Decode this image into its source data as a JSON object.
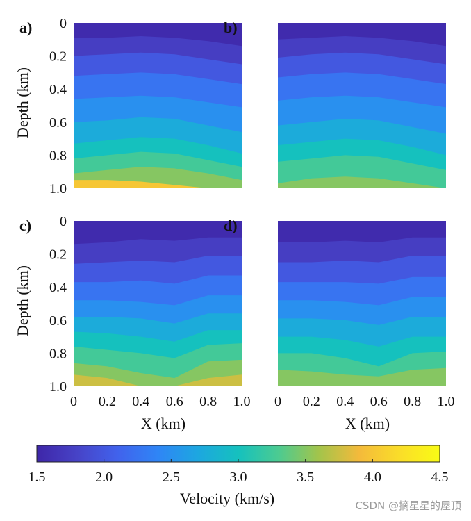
{
  "chart_data": {
    "type": "heatmap",
    "panels": [
      {
        "label": "a)",
        "ylabel": "Depth (km)",
        "xlabel": "",
        "show_yticks": true,
        "show_xticks": false,
        "boundaries": [
          {
            "v": 1.75,
            "d": [
              0.09,
              0.09,
              0.08,
              0.09,
              0.11,
              0.14
            ]
          },
          {
            "v": 2.0,
            "d": [
              0.2,
              0.19,
              0.18,
              0.19,
              0.22,
              0.25
            ]
          },
          {
            "v": 2.25,
            "d": [
              0.32,
              0.31,
              0.3,
              0.31,
              0.34,
              0.37
            ]
          },
          {
            "v": 2.5,
            "d": [
              0.46,
              0.45,
              0.44,
              0.45,
              0.48,
              0.51
            ]
          },
          {
            "v": 2.75,
            "d": [
              0.6,
              0.59,
              0.57,
              0.58,
              0.62,
              0.66
            ]
          },
          {
            "v": 3.0,
            "d": [
              0.73,
              0.71,
              0.69,
              0.7,
              0.74,
              0.79
            ]
          },
          {
            "v": 3.25,
            "d": [
              0.82,
              0.8,
              0.78,
              0.79,
              0.83,
              0.87
            ]
          },
          {
            "v": 3.5,
            "d": [
              0.91,
              0.89,
              0.87,
              0.88,
              0.91,
              0.95
            ]
          },
          {
            "v": 4.0,
            "d": [
              0.95,
              0.95,
              0.96,
              0.98,
              1.0,
              1.0
            ]
          }
        ],
        "bottom_v": 4.0
      },
      {
        "label": "b)",
        "ylabel": "",
        "xlabel": "",
        "show_yticks": false,
        "show_xticks": false,
        "boundaries": [
          {
            "v": 1.75,
            "d": [
              0.1,
              0.09,
              0.08,
              0.09,
              0.11,
              0.14
            ]
          },
          {
            "v": 2.0,
            "d": [
              0.21,
              0.19,
              0.18,
              0.19,
              0.22,
              0.25
            ]
          },
          {
            "v": 2.25,
            "d": [
              0.33,
              0.31,
              0.3,
              0.31,
              0.34,
              0.37
            ]
          },
          {
            "v": 2.5,
            "d": [
              0.47,
              0.45,
              0.44,
              0.45,
              0.48,
              0.51
            ]
          },
          {
            "v": 2.75,
            "d": [
              0.62,
              0.6,
              0.58,
              0.59,
              0.63,
              0.67
            ]
          },
          {
            "v": 3.0,
            "d": [
              0.74,
              0.72,
              0.7,
              0.71,
              0.75,
              0.8
            ]
          },
          {
            "v": 3.25,
            "d": [
              0.84,
              0.82,
              0.8,
              0.81,
              0.85,
              0.89
            ]
          },
          {
            "v": 3.5,
            "d": [
              0.97,
              0.94,
              0.93,
              0.94,
              0.97,
              1.0
            ]
          }
        ],
        "bottom_v": 3.8
      },
      {
        "label": "c)",
        "ylabel": "Depth (km)",
        "xlabel": "X (km)",
        "show_yticks": true,
        "show_xticks": true,
        "boundaries": [
          {
            "v": 1.75,
            "d": [
              0.14,
              0.13,
              0.11,
              0.12,
              0.1,
              0.1
            ]
          },
          {
            "v": 2.0,
            "d": [
              0.26,
              0.25,
              0.24,
              0.25,
              0.21,
              0.21
            ]
          },
          {
            "v": 2.25,
            "d": [
              0.37,
              0.37,
              0.36,
              0.38,
              0.33,
              0.33
            ]
          },
          {
            "v": 2.5,
            "d": [
              0.48,
              0.48,
              0.49,
              0.51,
              0.45,
              0.45
            ]
          },
          {
            "v": 2.75,
            "d": [
              0.58,
              0.58,
              0.59,
              0.62,
              0.56,
              0.56
            ]
          },
          {
            "v": 3.0,
            "d": [
              0.67,
              0.68,
              0.7,
              0.73,
              0.66,
              0.66
            ]
          },
          {
            "v": 3.25,
            "d": [
              0.76,
              0.78,
              0.8,
              0.83,
              0.75,
              0.74
            ]
          },
          {
            "v": 3.5,
            "d": [
              0.86,
              0.88,
              0.92,
              0.95,
              0.85,
              0.84
            ]
          },
          {
            "v": 3.75,
            "d": [
              0.93,
              0.95,
              1.0,
              1.0,
              0.95,
              0.93
            ]
          }
        ],
        "bottom_v": 4.0
      },
      {
        "label": "d)",
        "ylabel": "",
        "xlabel": "X (km)",
        "show_yticks": false,
        "show_xticks": true,
        "boundaries": [
          {
            "v": 1.75,
            "d": [
              0.13,
              0.13,
              0.12,
              0.13,
              0.1,
              0.1
            ]
          },
          {
            "v": 2.0,
            "d": [
              0.25,
              0.25,
              0.24,
              0.25,
              0.21,
              0.21
            ]
          },
          {
            "v": 2.25,
            "d": [
              0.37,
              0.37,
              0.37,
              0.38,
              0.34,
              0.34
            ]
          },
          {
            "v": 2.5,
            "d": [
              0.48,
              0.48,
              0.49,
              0.51,
              0.46,
              0.46
            ]
          },
          {
            "v": 2.75,
            "d": [
              0.59,
              0.59,
              0.6,
              0.63,
              0.58,
              0.58
            ]
          },
          {
            "v": 3.0,
            "d": [
              0.7,
              0.7,
              0.72,
              0.76,
              0.7,
              0.7
            ]
          },
          {
            "v": 3.25,
            "d": [
              0.8,
              0.8,
              0.83,
              0.88,
              0.8,
              0.79
            ]
          },
          {
            "v": 3.5,
            "d": [
              0.9,
              0.91,
              0.93,
              0.94,
              0.9,
              0.89
            ]
          }
        ],
        "bottom_v": 3.7
      }
    ],
    "x_ticks": [
      "0",
      "0.2",
      "0.4",
      "0.6",
      "0.8",
      "1.0"
    ],
    "y_ticks": [
      "0",
      "0.2",
      "0.4",
      "0.6",
      "0.8",
      "1.0"
    ],
    "xlim": [
      0,
      1.0
    ],
    "ylim": [
      0,
      1.0
    ],
    "top_v": 1.55,
    "colorbar": {
      "label": "Velocity (km/s)",
      "range": [
        1.5,
        4.5
      ],
      "ticks": [
        "1.5",
        "2.0",
        "2.5",
        "3.0",
        "3.5",
        "4.0",
        "4.5"
      ],
      "colormap": [
        "#3e26a8",
        "#4743c7",
        "#4162ec",
        "#2f85f6",
        "#1da7e0",
        "#15c1be",
        "#4ccb91",
        "#a3c44b",
        "#f4ba3b",
        "#fadd29",
        "#f9fb15"
      ]
    }
  },
  "watermark": "CSDN @摘星星的屋顶"
}
